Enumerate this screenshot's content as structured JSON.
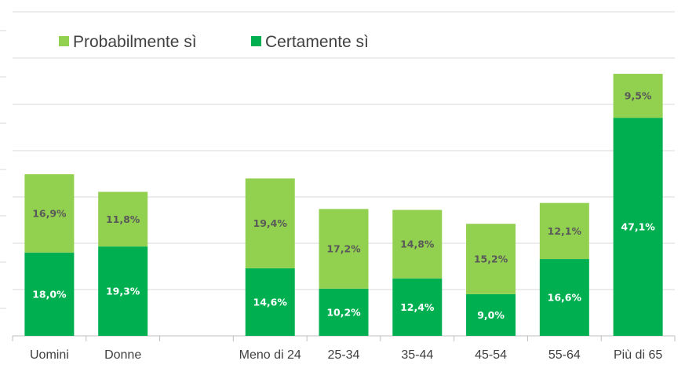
{
  "chart_data": {
    "type": "bar",
    "stacked": true,
    "categories": [
      "Uomini",
      "Donne",
      "",
      "Meno di 24",
      "25-34",
      "35-44",
      "45-54",
      "55-64",
      "Più di 65"
    ],
    "series": [
      {
        "name": "Certamente sì",
        "color": "#00b050",
        "label_color": "#ffffff",
        "values": [
          18.0,
          19.3,
          null,
          14.6,
          10.2,
          12.4,
          9.0,
          16.6,
          47.1
        ],
        "labels": [
          "18,0%",
          "19,3%",
          "",
          "14,6%",
          "10,2%",
          "12,4%",
          "9,0%",
          "16,6%",
          "47,1%"
        ]
      },
      {
        "name": "Probabilmente sì",
        "color": "#92d050",
        "label_color": "#595959",
        "values": [
          16.9,
          11.8,
          null,
          19.4,
          17.2,
          14.8,
          15.2,
          12.1,
          9.5
        ],
        "labels": [
          "16,9%",
          "11,8%",
          "",
          "19,4%",
          "17,2%",
          "14,8%",
          "15,2%",
          "12,1%",
          "9,5%"
        ]
      }
    ],
    "legend": {
      "position": "top-left",
      "order": [
        "Probabilmente sì",
        "Certamente sì"
      ]
    },
    "ylim": [
      0,
      70
    ],
    "grid": true,
    "title": "",
    "xlabel": "",
    "ylabel": ""
  }
}
